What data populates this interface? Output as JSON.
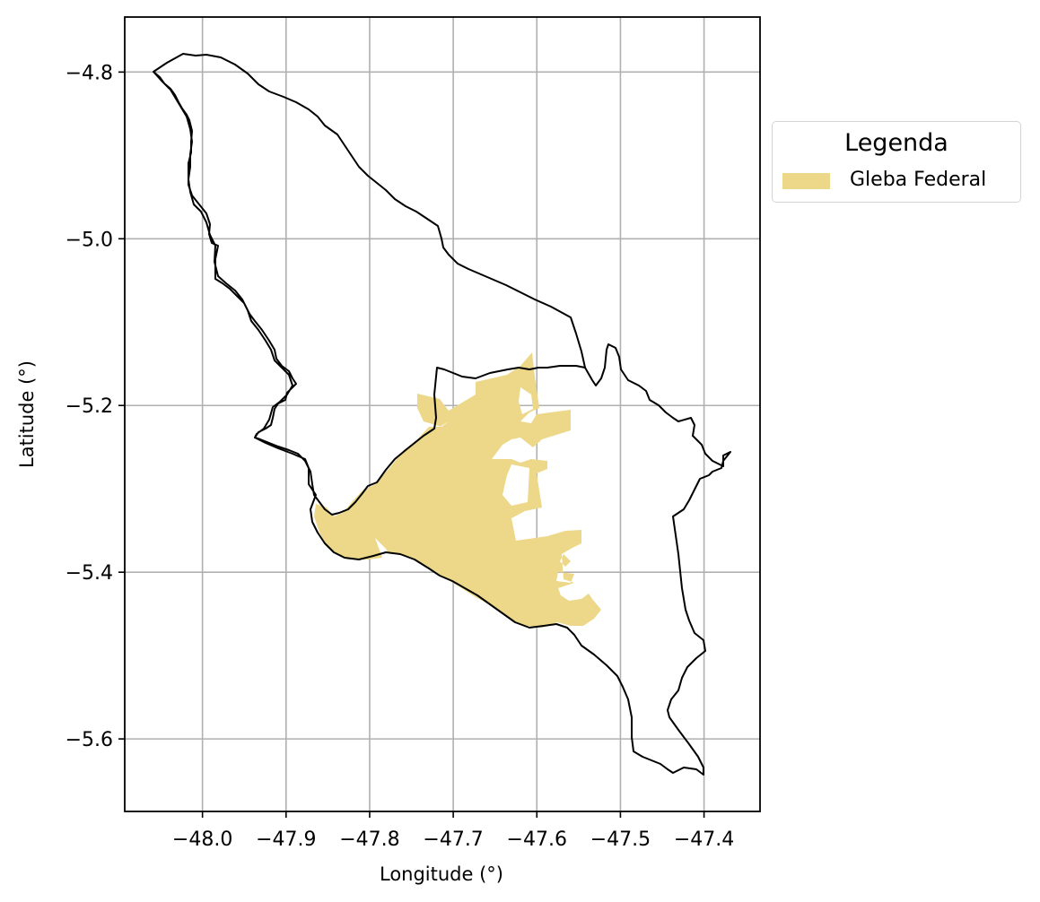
{
  "map": {
    "xlabel": "Longitude (°)",
    "ylabel": "Latitude (°)",
    "xlim": [
      -48.093,
      -47.333
    ],
    "ylim": [
      -5.687,
      -4.734
    ],
    "xticks": [
      -48.0,
      -47.9,
      -47.8,
      -47.7,
      -47.6,
      -47.5,
      -47.4
    ],
    "yticks": [
      -4.8,
      -5.0,
      -5.2,
      -5.4,
      -5.6
    ],
    "xtick_labels": [
      "−48.0",
      "−47.9",
      "−47.8",
      "−47.7",
      "−47.6",
      "−47.5",
      "−47.4"
    ],
    "ytick_labels": [
      "−4.8",
      "−5.0",
      "−5.2",
      "−5.4",
      "−5.6"
    ],
    "grid": true,
    "boundary_color": "#000000",
    "gleba_color": "#ecd888",
    "legend": {
      "title": "Legenda",
      "placement": "right-outside-top",
      "items": [
        {
          "label": "Gleba Federal",
          "color": "#ecd888"
        }
      ]
    }
  }
}
